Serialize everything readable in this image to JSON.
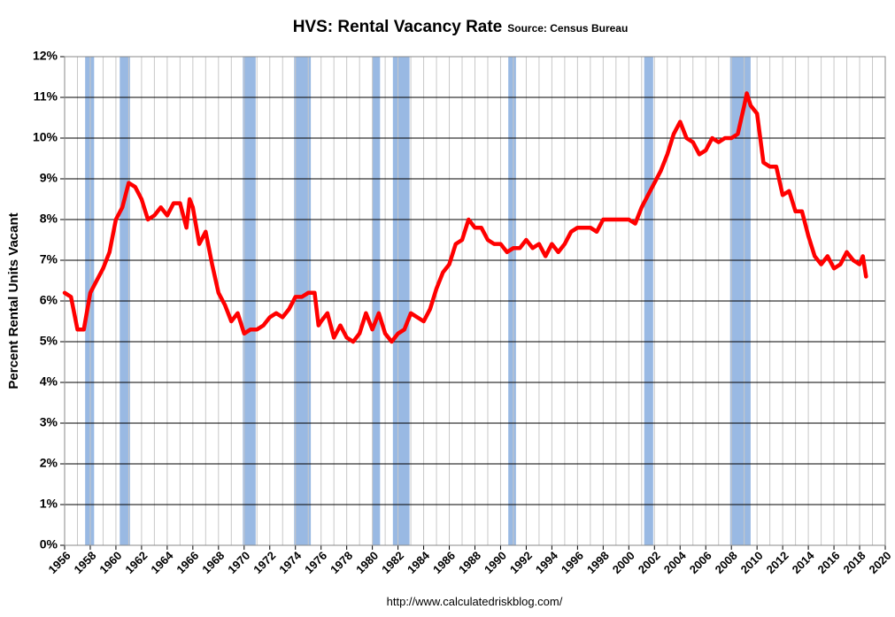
{
  "chart_data": {
    "type": "line",
    "title": "HVS: Rental Vacancy Rate",
    "subtitle": "Source: Census Bureau",
    "y_label": "Percent Rental Units Vacant",
    "source": "http://www.calculatedriskblog.com/",
    "color": "#ff0000",
    "shade_color": "#99b9e3",
    "grid": true,
    "xlim": [
      1956,
      2020
    ],
    "ylim": [
      0,
      12
    ],
    "xticks": [
      1956,
      1958,
      1960,
      1962,
      1964,
      1966,
      1968,
      1970,
      1972,
      1974,
      1976,
      1978,
      1980,
      1982,
      1984,
      1986,
      1988,
      1990,
      1992,
      1994,
      1996,
      1998,
      2000,
      2002,
      2004,
      2006,
      2008,
      2010,
      2012,
      2014,
      2016,
      2018,
      2020
    ],
    "x_minor_ticks": [
      1957,
      1959,
      1961,
      1963,
      1965,
      1967,
      1969,
      1971,
      1973,
      1975,
      1977,
      1979,
      1981,
      1983,
      1985,
      1987,
      1989,
      1991,
      1993,
      1995,
      1997,
      1999,
      2001,
      2003,
      2005,
      2007,
      2009,
      2011,
      2013,
      2015,
      2017,
      2019
    ],
    "yticks": [
      {
        "value": 0,
        "label": "0%"
      },
      {
        "value": 1,
        "label": "1%"
      },
      {
        "value": 2,
        "label": "2%"
      },
      {
        "value": 3,
        "label": "3%"
      },
      {
        "value": 4,
        "label": "4%"
      },
      {
        "value": 5,
        "label": "5%"
      },
      {
        "value": 6,
        "label": "6%"
      },
      {
        "value": 7,
        "label": "7%"
      },
      {
        "value": 8,
        "label": "8%"
      },
      {
        "value": 9,
        "label": "9%"
      },
      {
        "value": 10,
        "label": "10%"
      },
      {
        "value": 11,
        "label": "11%"
      },
      {
        "value": 12,
        "label": "12%"
      }
    ],
    "recessions": [
      [
        1957.6,
        1958.3
      ],
      [
        1960.3,
        1961.1
      ],
      [
        1969.9,
        1970.9
      ],
      [
        1973.9,
        1975.2
      ],
      [
        1980.0,
        1980.6
      ],
      [
        1981.6,
        1982.9
      ],
      [
        1990.6,
        1991.2
      ],
      [
        2001.2,
        2001.9
      ],
      [
        2007.9,
        2009.5
      ]
    ],
    "x": [
      1956,
      1956.5,
      1957,
      1957.5,
      1958,
      1958.5,
      1959,
      1959.5,
      1960,
      1960.5,
      1961,
      1961.5,
      1962,
      1962.5,
      1963,
      1963.5,
      1964,
      1964.5,
      1965,
      1965.5,
      1965.75,
      1966,
      1966.5,
      1967,
      1967.5,
      1968,
      1968.5,
      1969,
      1969.5,
      1970,
      1970.5,
      1971,
      1971.5,
      1972,
      1972.5,
      1973,
      1973.5,
      1974,
      1974.5,
      1975,
      1975.5,
      1975.8,
      1976,
      1976.5,
      1977,
      1977.5,
      1978,
      1978.5,
      1979,
      1979.5,
      1980,
      1980.5,
      1981,
      1981.5,
      1982,
      1982.5,
      1983,
      1983.5,
      1984,
      1984.5,
      1985,
      1985.5,
      1986,
      1986.5,
      1987,
      1987.5,
      1988,
      1988.5,
      1989,
      1989.5,
      1990,
      1990.5,
      1991,
      1991.5,
      1992,
      1992.5,
      1993,
      1993.5,
      1994,
      1994.5,
      1995,
      1995.5,
      1996,
      1996.5,
      1997,
      1997.5,
      1998,
      1998.5,
      1999,
      1999.5,
      2000,
      2000.5,
      2001,
      2001.5,
      2002,
      2002.5,
      2003,
      2003.5,
      2004,
      2004.5,
      2005,
      2005.5,
      2006,
      2006.5,
      2007,
      2007.5,
      2008,
      2008.5,
      2009,
      2009.2,
      2009.5,
      2010,
      2010.5,
      2011,
      2011.5,
      2012,
      2012.5,
      2013,
      2013.5,
      2014,
      2014.5,
      2015,
      2015.5,
      2016,
      2016.5,
      2017,
      2017.5,
      2018,
      2018.25,
      2018.5
    ],
    "values": [
      6.2,
      6.1,
      5.3,
      5.3,
      6.2,
      6.5,
      6.8,
      7.2,
      8.0,
      8.3,
      8.9,
      8.8,
      8.5,
      8.0,
      8.1,
      8.3,
      8.1,
      8.4,
      8.4,
      7.8,
      8.5,
      8.3,
      7.4,
      7.7,
      6.9,
      6.2,
      5.9,
      5.5,
      5.7,
      5.2,
      5.3,
      5.3,
      5.4,
      5.6,
      5.7,
      5.6,
      5.8,
      6.1,
      6.1,
      6.2,
      6.2,
      5.4,
      5.5,
      5.7,
      5.1,
      5.4,
      5.1,
      5.0,
      5.2,
      5.7,
      5.3,
      5.7,
      5.2,
      5.0,
      5.2,
      5.3,
      5.7,
      5.6,
      5.5,
      5.8,
      6.3,
      6.7,
      6.9,
      7.4,
      7.5,
      8.0,
      7.8,
      7.8,
      7.5,
      7.4,
      7.4,
      7.2,
      7.3,
      7.3,
      7.5,
      7.3,
      7.4,
      7.1,
      7.4,
      7.2,
      7.4,
      7.7,
      7.8,
      7.8,
      7.8,
      7.7,
      8.0,
      8.0,
      8.0,
      8.0,
      8.0,
      7.9,
      8.3,
      8.6,
      8.9,
      9.2,
      9.6,
      10.1,
      10.4,
      10.0,
      9.9,
      9.6,
      9.7,
      10.0,
      9.9,
      10.0,
      10.0,
      10.1,
      10.8,
      11.1,
      10.8,
      10.6,
      9.4,
      9.3,
      9.3,
      8.6,
      8.7,
      8.2,
      8.2,
      7.6,
      7.1,
      6.9,
      7.1,
      6.8,
      6.9,
      7.2,
      7.0,
      6.9,
      7.1,
      6.6
    ]
  }
}
